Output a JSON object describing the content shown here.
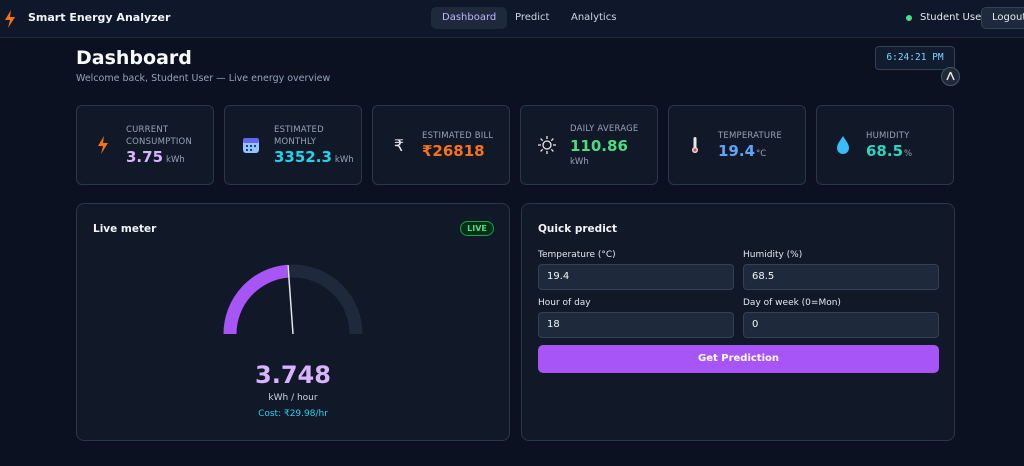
{
  "nav": {
    "brand": "Smart Energy Analyzer",
    "tabs": [
      "Dashboard",
      "Predict",
      "Analytics"
    ],
    "user": "Student User",
    "logout": "Logout"
  },
  "header": {
    "title": "Dashboard",
    "subtitle": "Welcome back, Student User — Live energy overview",
    "clock": "6:24:21 PM"
  },
  "cards": [
    {
      "label": "CURRENT CONSUMPTION",
      "value": "3.75",
      "unit": "kWh"
    },
    {
      "label": "ESTIMATED MONTHLY",
      "value": "3352.3",
      "unit": "kWh"
    },
    {
      "icon": "₹",
      "label": "ESTIMATED BILL",
      "value": "₹26818"
    },
    {
      "label": "DAILY AVERAGE",
      "value": "110.86",
      "unit": "kWh"
    },
    {
      "label": "TEMPERATURE",
      "value": "19.4",
      "unit": "°C"
    },
    {
      "label": "HUMIDITY",
      "value": "68.5",
      "unit": "%"
    }
  ],
  "live_meter": {
    "title": "Live meter",
    "badge": "LIVE",
    "value": "3.748",
    "unit": "kWh / hour",
    "cost": "Cost: ₹29.98/hr"
  },
  "quick_predict": {
    "title": "Quick predict",
    "fields": [
      {
        "label": "Temperature (°C)",
        "value": "19.4"
      },
      {
        "label": "Humidity (%)",
        "value": "68.5"
      },
      {
        "label": "Hour of day",
        "value": "18"
      },
      {
        "label": "Day of week (0=Mon)",
        "value": "0"
      }
    ],
    "button": "Get Prediction"
  }
}
